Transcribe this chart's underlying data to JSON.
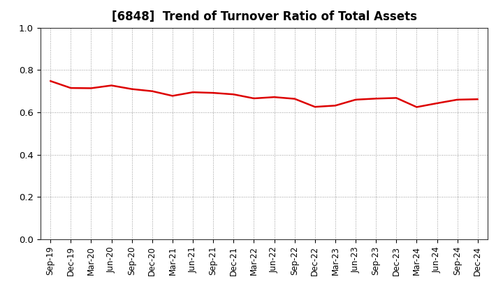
{
  "title": "[6848]  Trend of Turnover Ratio of Total Assets",
  "x_labels": [
    "Sep-19",
    "Dec-19",
    "Mar-20",
    "Jun-20",
    "Sep-20",
    "Dec-20",
    "Mar-21",
    "Jun-21",
    "Sep-21",
    "Dec-21",
    "Mar-22",
    "Jun-22",
    "Sep-22",
    "Dec-22",
    "Mar-23",
    "Jun-23",
    "Sep-23",
    "Dec-23",
    "Mar-24",
    "Jun-24",
    "Sep-24",
    "Dec-24"
  ],
  "y_values": [
    0.748,
    0.715,
    0.714,
    0.727,
    0.71,
    0.7,
    0.678,
    0.695,
    0.692,
    0.685,
    0.666,
    0.672,
    0.664,
    0.626,
    0.632,
    0.66,
    0.665,
    0.668,
    0.625,
    0.643,
    0.66,
    0.662
  ],
  "line_color": "#dd0000",
  "line_width": 1.8,
  "ylim": [
    0.0,
    1.0
  ],
  "yticks": [
    0.0,
    0.2,
    0.4,
    0.6,
    0.8,
    1.0
  ],
  "background_color": "#ffffff",
  "grid_color": "#999999",
  "title_fontsize": 12,
  "tick_fontsize": 8.5
}
